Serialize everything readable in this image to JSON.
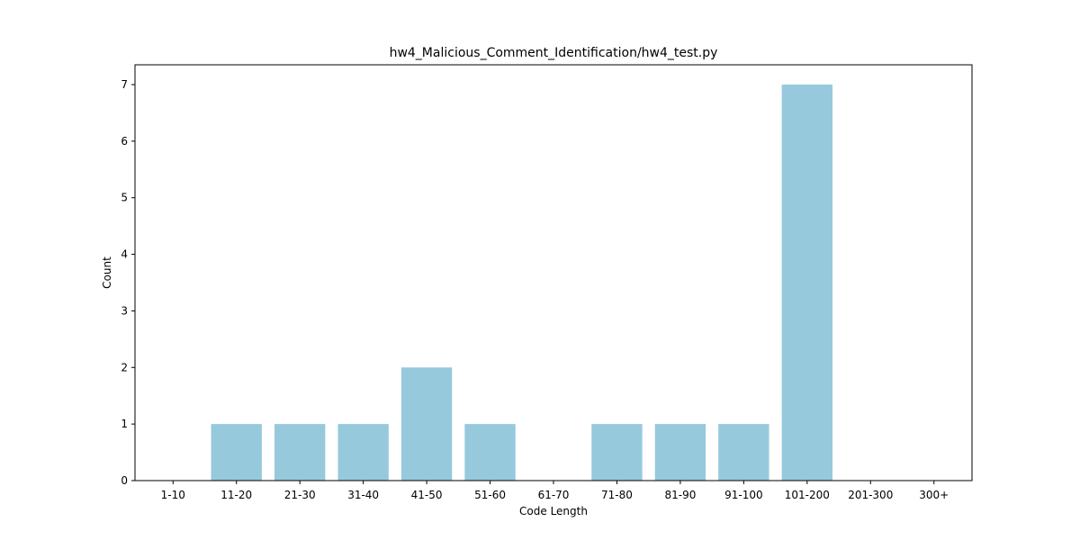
{
  "chart_data": {
    "type": "bar",
    "title": "hw4_Malicious_Comment_Identification/hw4_test.py",
    "xlabel": "Code Length",
    "ylabel": "Count",
    "categories": [
      "1-10",
      "11-20",
      "21-30",
      "31-40",
      "41-50",
      "51-60",
      "61-70",
      "71-80",
      "81-90",
      "91-100",
      "101-200",
      "201-300",
      "300+"
    ],
    "values": [
      0,
      1,
      1,
      1,
      2,
      1,
      0,
      1,
      1,
      1,
      7,
      0,
      0
    ],
    "ylim": [
      0,
      7.35
    ],
    "yticks": [
      0,
      1,
      2,
      3,
      4,
      5,
      6,
      7
    ],
    "bar_color": "#96c9dc",
    "grid": false,
    "legend": "none"
  }
}
